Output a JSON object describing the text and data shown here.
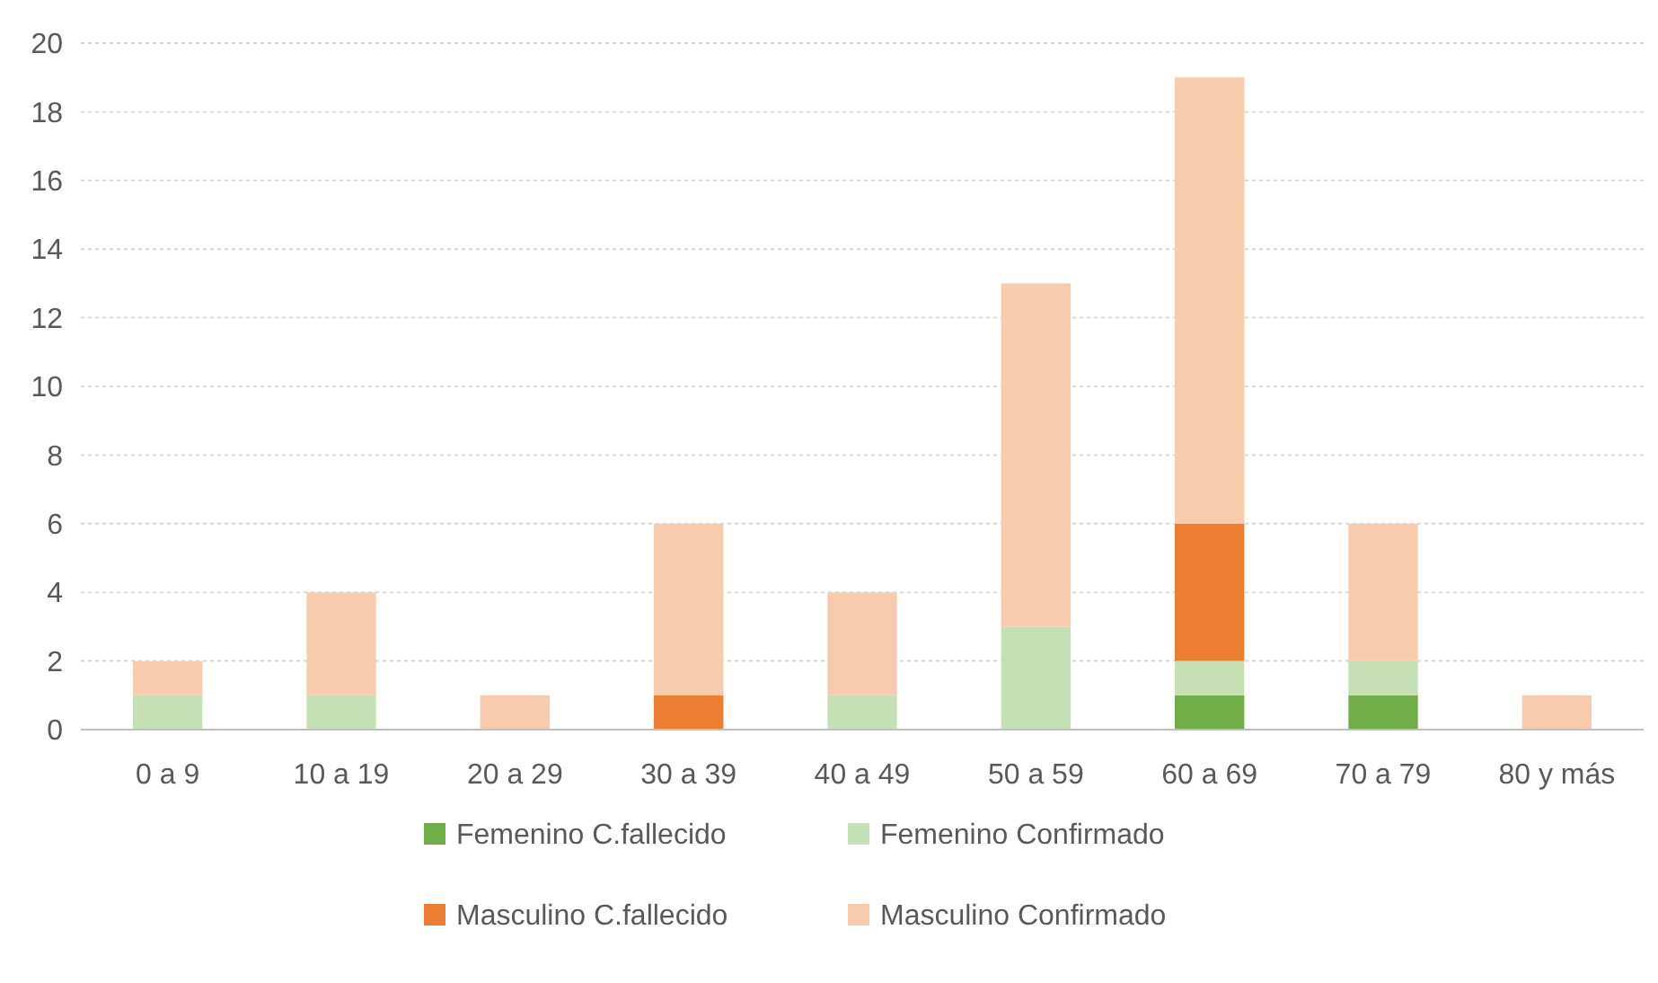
{
  "chart_data": {
    "type": "bar",
    "stacked": true,
    "categories": [
      "0 a 9",
      "10 a 19",
      "20 a 29",
      "30 a 39",
      "40 a 49",
      "50 a 59",
      "60 a 69",
      "70 a 79",
      "80 y más"
    ],
    "series": [
      {
        "name": "Femenino C.fallecido",
        "color": "#70ad47",
        "values": [
          0,
          0,
          0,
          0,
          0,
          0,
          1,
          1,
          0
        ]
      },
      {
        "name": "Femenino Confirmado",
        "color": "#c5e0b4",
        "values": [
          1,
          1,
          0,
          0,
          1,
          3,
          1,
          1,
          0
        ]
      },
      {
        "name": "Masculino C.fallecido",
        "color": "#ed7d31",
        "values": [
          0,
          0,
          0,
          1,
          0,
          0,
          4,
          0,
          0
        ]
      },
      {
        "name": "Masculino Confirmado",
        "color": "#f8cbad",
        "values": [
          1,
          3,
          1,
          5,
          3,
          10,
          13,
          4,
          1
        ]
      }
    ],
    "ylim": [
      0,
      20
    ],
    "yticks": [
      0,
      2,
      4,
      6,
      8,
      10,
      12,
      14,
      16,
      18,
      20
    ],
    "grid": "y",
    "legend": "bottom"
  }
}
